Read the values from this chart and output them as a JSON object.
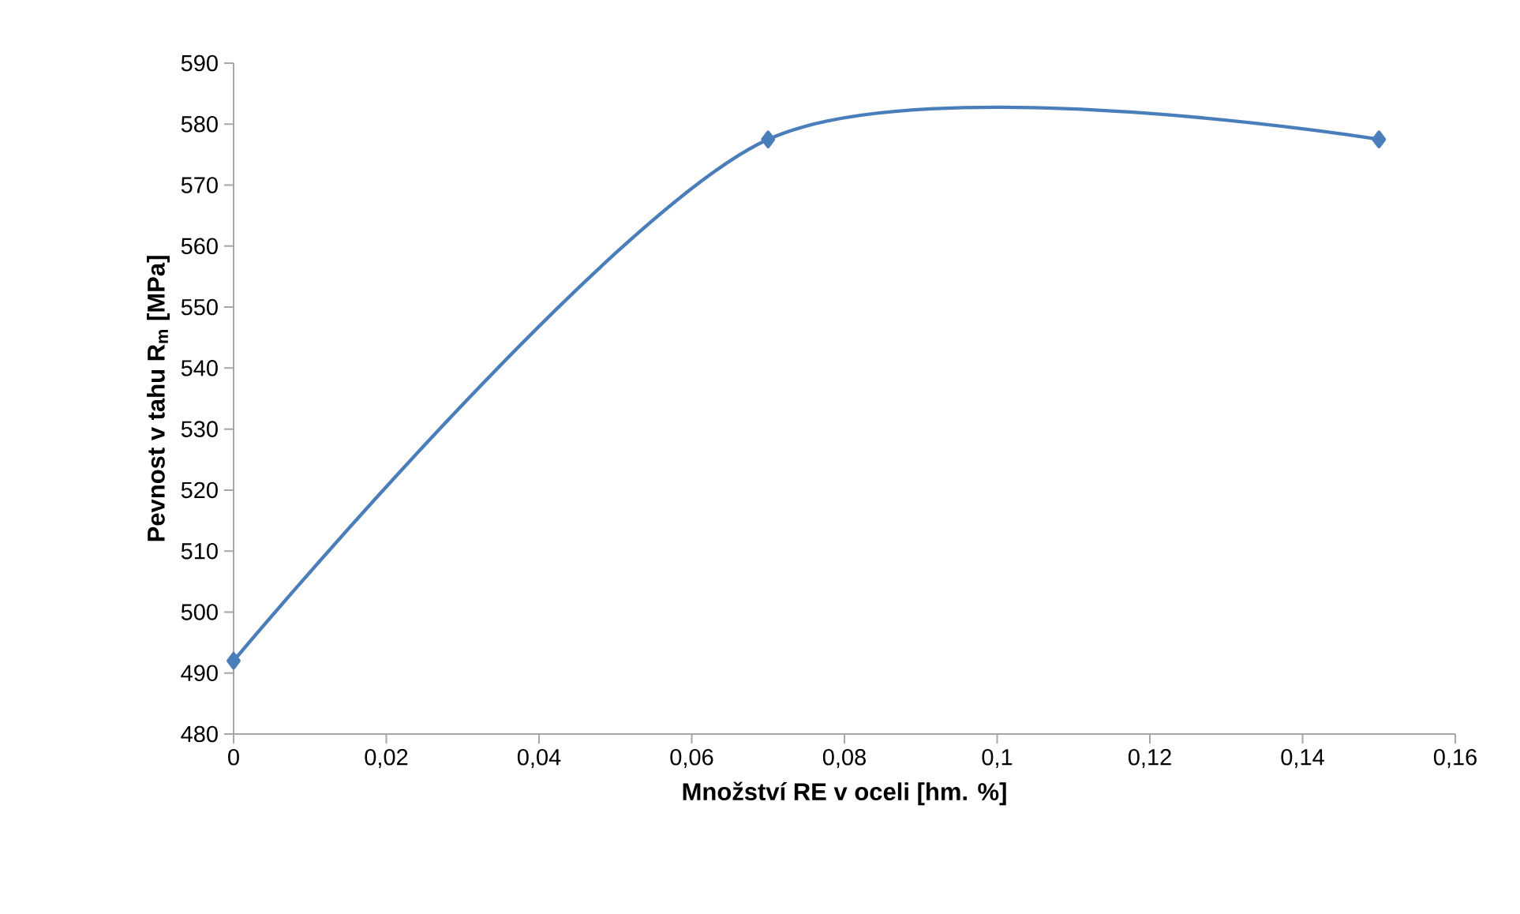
{
  "chart_data": {
    "type": "line",
    "xlabel": "Množství RE v oceli  [hm. %]",
    "ylabel": "Pevnost v tahu R$_{m}$ [MPa]",
    "x": [
      0,
      0.07,
      0.15
    ],
    "series": [
      {
        "color": "#4a7ebb",
        "values": [
          492,
          577.5,
          577.5
        ]
      }
    ],
    "xlim": [
      0,
      0.16
    ],
    "xticks": [
      0,
      {
        "value": 0.02,
        "label": "0,02"
      },
      {
        "value": 0.04,
        "label": "0,04"
      },
      {
        "value": 0.06,
        "label": "0,06"
      },
      {
        "value": 0.08,
        "label": "0,08"
      },
      {
        "value": 0.1,
        "label": "0,1"
      },
      {
        "value": 0.12,
        "label": "0,12"
      },
      {
        "value": 0.14,
        "label": "0,14"
      },
      {
        "value": 0.16,
        "label": "0,16"
      }
    ],
    "ylim": [
      480,
      590
    ],
    "yticks": [
      480,
      490,
      500,
      510,
      520,
      530,
      540,
      550,
      560,
      570,
      580,
      590
    ],
    "grid": false,
    "marker": "diamond",
    "line_style": "solid"
  }
}
